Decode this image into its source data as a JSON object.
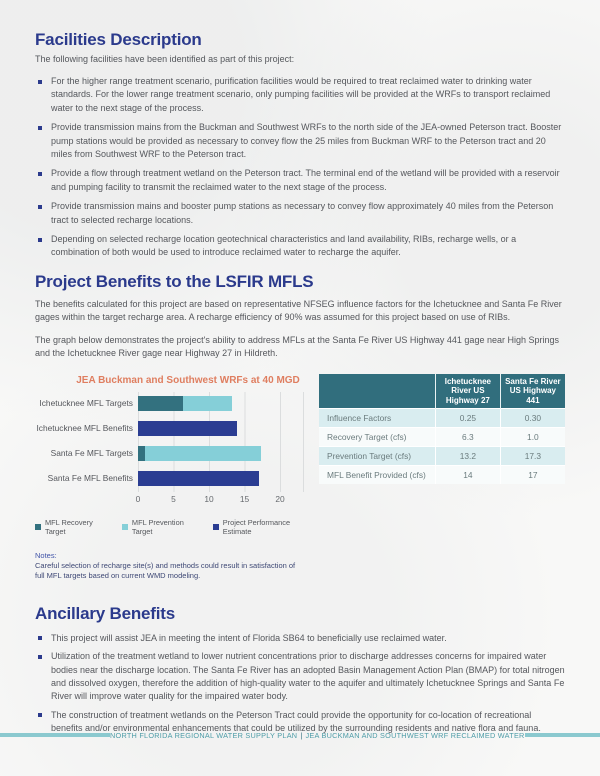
{
  "colors": {
    "heading_navy": "#2B3A8C",
    "body_text": "#55575C",
    "accent_coral": "#DF7E60",
    "teal_dark": "#33717F",
    "teal_light": "#85CFD8",
    "bar_navy": "#2B3D92",
    "table_header_bg": "#316E7D",
    "table_stripe": "#D9EDF0",
    "footer_teal": "#4D9CA7",
    "footer_bar": "#8BC9CF",
    "notes_blue": "#3E4875"
  },
  "sections": {
    "facilities": {
      "title": "Facilities Description",
      "intro": "The following facilities have been identified as part of this project:",
      "bullets": [
        "For the higher range treatment scenario, purification facilities would be required to treat reclaimed water to drinking water standards. For the lower range treatment scenario, only pumping facilities will be provided at the WRFs to transport reclaimed water to the next stage of the process.",
        "Provide transmission mains from the Buckman and Southwest WRFs to the north side of the JEA-owned Peterson tract. Booster pump stations would be provided as necessary to convey flow the 25 miles from Buckman WRF to the Peterson tract and 20 miles from Southwest WRF to the Peterson tract.",
        "Provide a flow through treatment wetland on the Peterson tract.  The terminal end of the wetland will be provided with a reservoir and pumping facility to transmit the reclaimed water to the next stage of the process.",
        "Provide transmission mains and booster pump stations as necessary to convey flow approximately 40 miles from the Peterson tract to selected recharge locations.",
        "Depending on selected recharge location geotechnical characteristics and land availability, RIBs, recharge wells, or a combination of both would be used to introduce reclaimed water to recharge the aquifer."
      ]
    },
    "benefits": {
      "title": "Project Benefits to the LSFIR MFLS",
      "para1": "The benefits calculated for this project are based on representative NFSEG influence factors for the Ichetucknee and Santa Fe River gages within the target recharge area. A recharge efficiency of 90% was assumed for this project based on use of RIBs.",
      "para2": "The graph below demonstrates the project's ability to address MFLs at the Santa Fe River US Highway 441 gage near High Springs and the Ichetucknee River gage near Highway 27 in Hildreth."
    },
    "notes": {
      "label": "Notes:",
      "lines": [
        "Careful selection of recharge site(s) and methods could result in satisfaction of",
        "full MFL targets based on current WMD modeling."
      ]
    },
    "ancillary": {
      "title": "Ancillary Benefits",
      "bullets": [
        "This project will assist JEA in meeting the intent of Florida SB64 to beneficially use reclaimed water.",
        "Utilization of the treatment wetland to lower nutrient concentrations prior to discharge addresses concerns for impaired water bodies near the discharge location. The Santa Fe River has an adopted Basin Management Action Plan (BMAP) for total nitrogen and dissolved oxygen, therefore the addition of high-quality water to the aquifer and ultimately Ichetucknee Springs and Santa Fe River will improve water quality for the impaired water body.",
        "The construction of treatment wetlands on the Peterson Tract could provide the opportunity for co-location of recreational benefits and/or environmental enhancements that could be utilized by the surrounding residents and native flora and fauna."
      ]
    }
  },
  "chart_data": {
    "type": "bar",
    "orientation": "horizontal",
    "title": "JEA Buckman and Southwest WRFs at 40 MGD",
    "categories": [
      "Ichetucknee MFL Targets",
      "Ichetucknee MFL Benefits",
      "Santa Fe MFL Targets",
      "Santa Fe MFL Benefits"
    ],
    "series": [
      {
        "name": "MFL Recovery Target",
        "color": "#33717F",
        "values": [
          6.3,
          0,
          1.0,
          0
        ]
      },
      {
        "name": "MFL Prevention Target",
        "color": "#85CFD8",
        "values": [
          13.2,
          0,
          17.3,
          0
        ]
      },
      {
        "name": "Project Performance Estimate",
        "color": "#2B3D92",
        "values": [
          0,
          14,
          0,
          17
        ]
      }
    ],
    "bars": [
      {
        "label": "Ichetucknee MFL Targets",
        "segments": [
          {
            "series": "MFL Recovery Target",
            "from": 0,
            "to": 6.3
          },
          {
            "series": "MFL Prevention Target",
            "from": 6.3,
            "to": 13.2
          }
        ]
      },
      {
        "label": "Ichetucknee MFL Benefits",
        "segments": [
          {
            "series": "Project Performance Estimate",
            "from": 0,
            "to": 14
          }
        ]
      },
      {
        "label": "Santa Fe MFL Targets",
        "segments": [
          {
            "series": "MFL Recovery Target",
            "from": 0,
            "to": 1.0
          },
          {
            "series": "MFL Prevention Target",
            "from": 1.0,
            "to": 17.3
          }
        ]
      },
      {
        "label": "Santa Fe MFL Benefits",
        "segments": [
          {
            "series": "Project Performance Estimate",
            "from": 0,
            "to": 17
          }
        ]
      }
    ],
    "xlabel": "",
    "ylabel": "",
    "xlim": [
      0,
      20
    ],
    "xticks": [
      0,
      5,
      10,
      15,
      20
    ],
    "grid": true,
    "legend_position": "bottom"
  },
  "table": {
    "columns": [
      "Ichetucknee River US Highway 27",
      "Santa Fe River US Highway 441"
    ],
    "rows": [
      {
        "label": "Influence Factors",
        "values": [
          "0.25",
          "0.30"
        ]
      },
      {
        "label": "Recovery Target (cfs)",
        "values": [
          "6.3",
          "1.0"
        ]
      },
      {
        "label": "Prevention Target (cfs)",
        "values": [
          "13.2",
          "17.3"
        ]
      },
      {
        "label": "MFL Benefit Provided (cfs)",
        "values": [
          "14",
          "17"
        ]
      }
    ]
  },
  "footer": {
    "left": "NORTH FLORIDA REGIONAL WATER SUPPLY PLAN",
    "divider": "|",
    "right": "JEA BUCKMAN AND SOUTHWEST WRF RECLAIMED WATER"
  }
}
